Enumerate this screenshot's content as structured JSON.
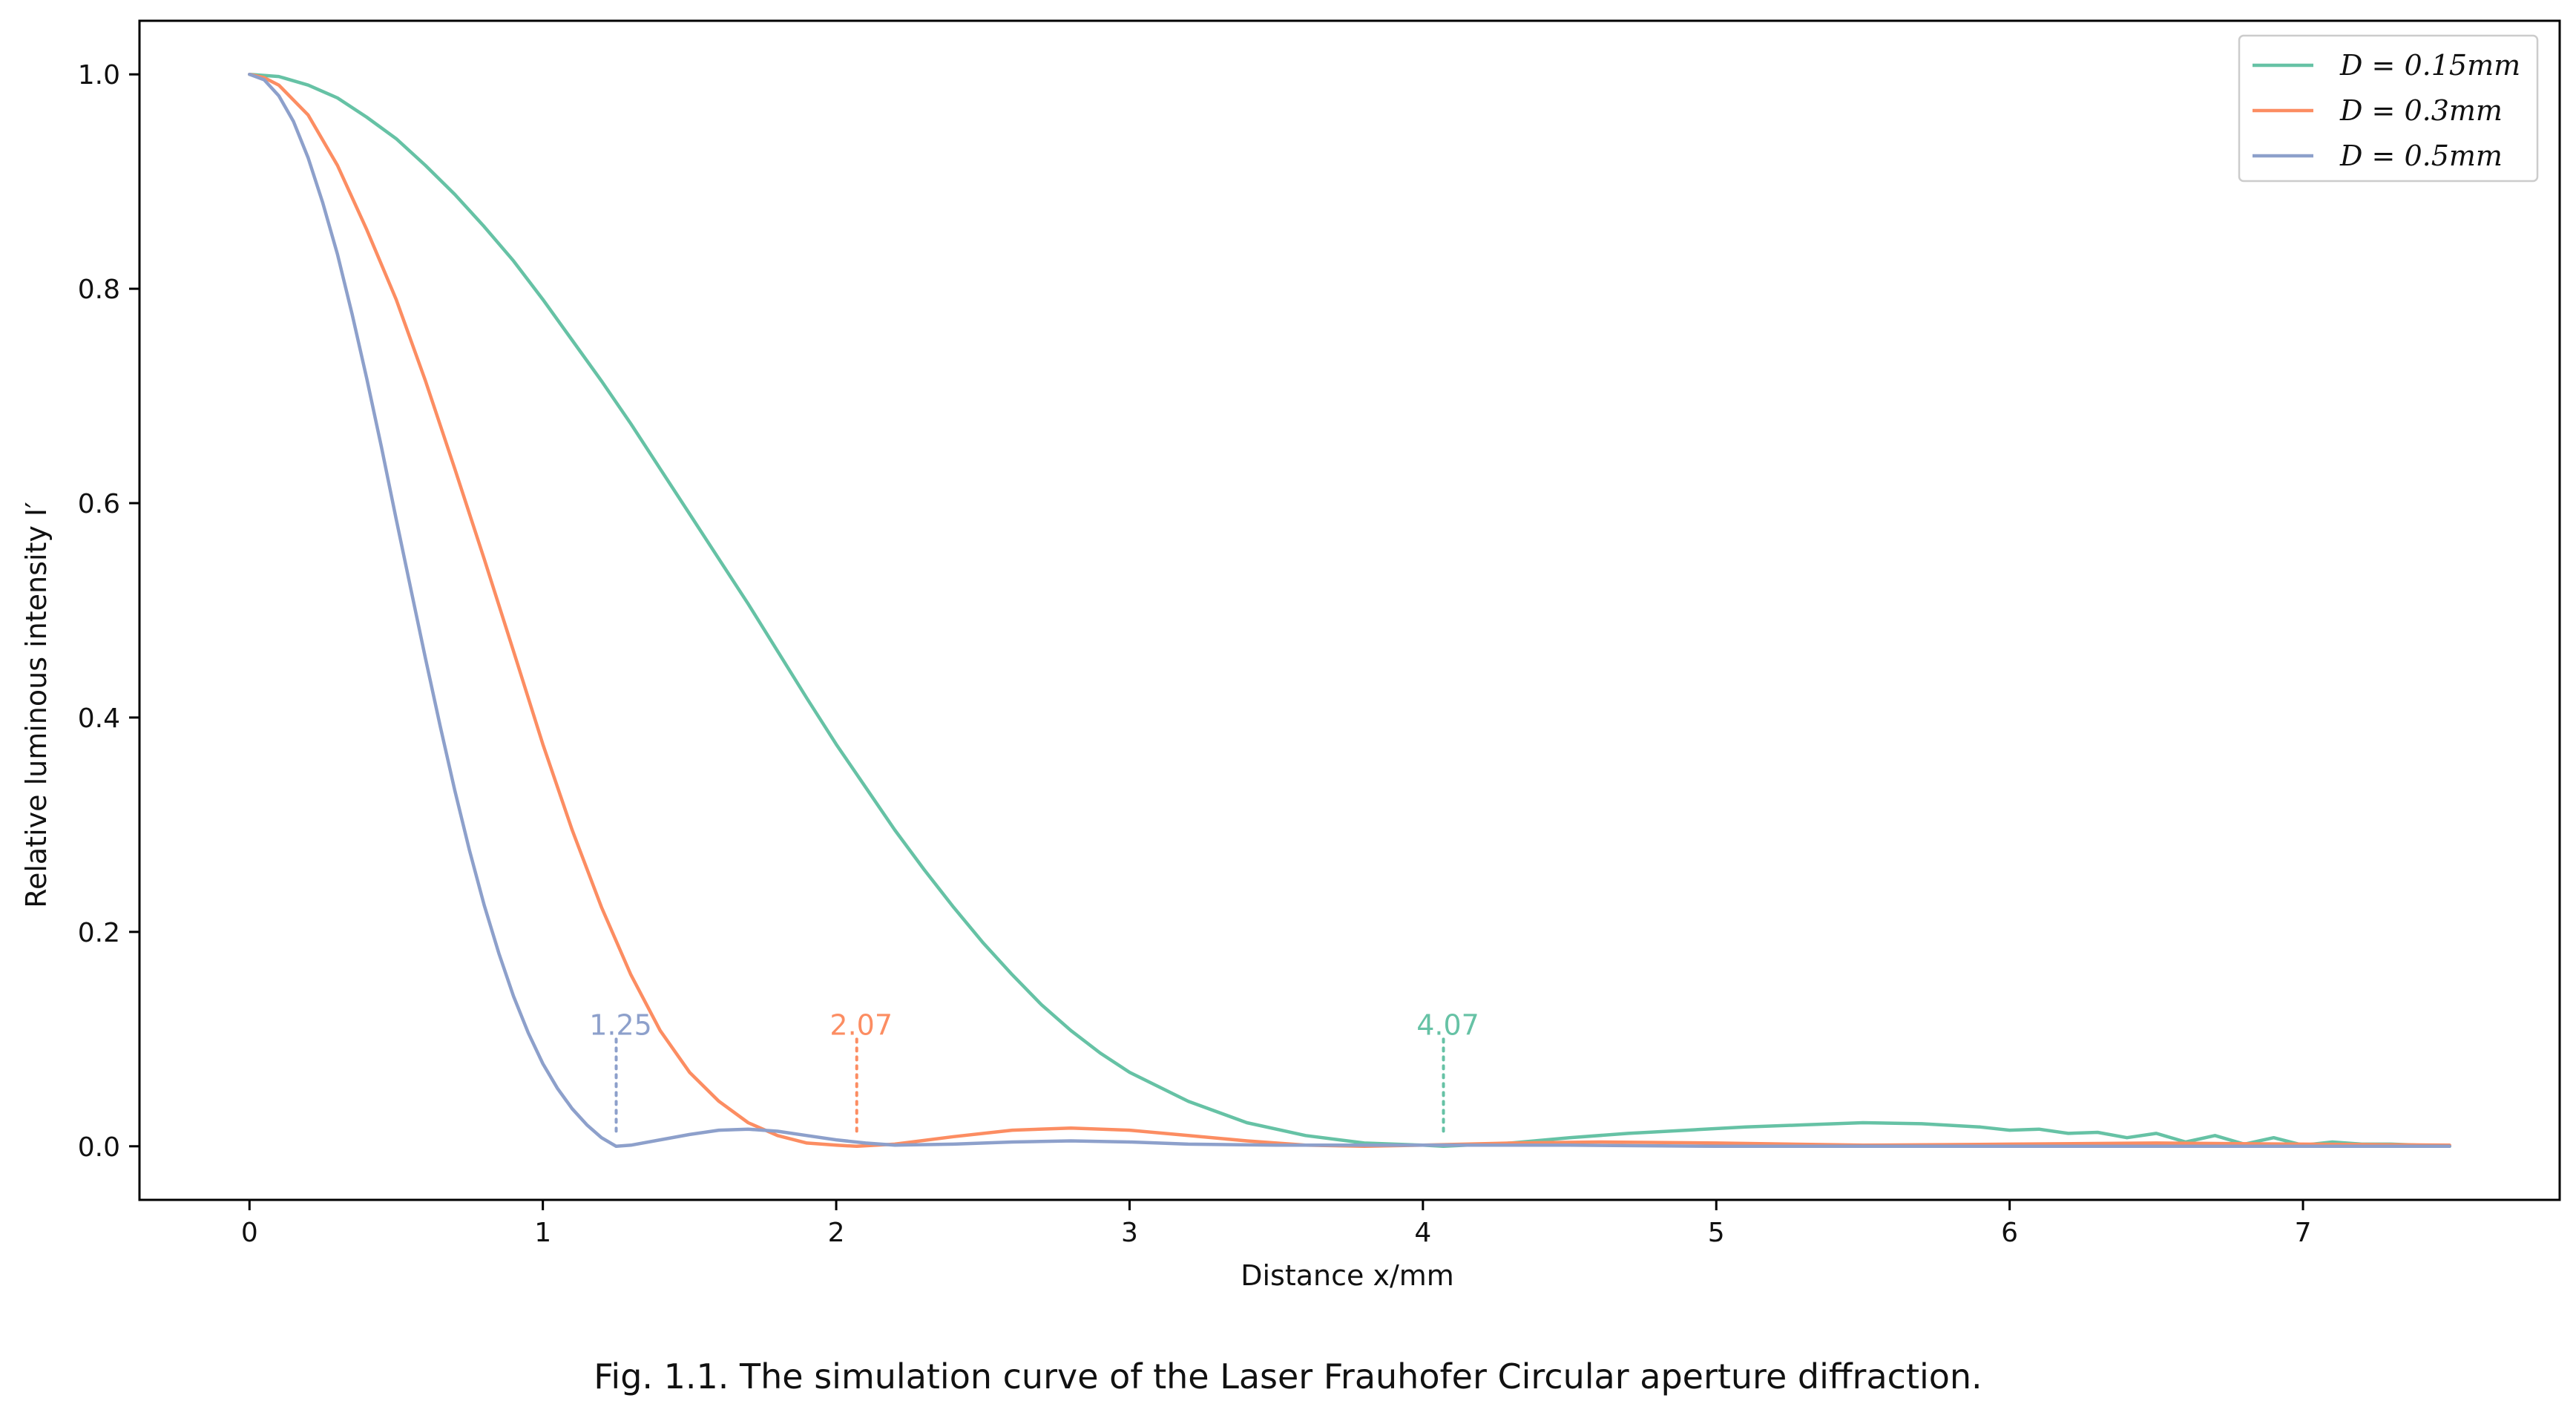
{
  "chart_data": {
    "type": "line",
    "title": "",
    "xlabel": "Distance x/mm",
    "ylabel": "Relative luminous intensity I′",
    "xlim": [
      -0.375,
      7.875
    ],
    "ylim": [
      -0.05,
      1.05
    ],
    "grid": false,
    "legend_position": "top-right",
    "xticks": [
      "0",
      "1",
      "2",
      "3",
      "4",
      "5",
      "6",
      "7"
    ],
    "yticks": [
      "0.0",
      "0.2",
      "0.4",
      "0.6",
      "0.8",
      "1.0"
    ],
    "series": [
      {
        "name": "D = 0.15mm",
        "color": "#66c2a5",
        "points": [
          [
            0.0,
            1.0
          ],
          [
            0.1,
            0.998
          ],
          [
            0.2,
            0.99
          ],
          [
            0.3,
            0.978
          ],
          [
            0.4,
            0.96
          ],
          [
            0.5,
            0.94
          ],
          [
            0.6,
            0.915
          ],
          [
            0.7,
            0.888
          ],
          [
            0.8,
            0.858
          ],
          [
            0.9,
            0.826
          ],
          [
            1.0,
            0.79
          ],
          [
            1.1,
            0.752
          ],
          [
            1.2,
            0.714
          ],
          [
            1.3,
            0.674
          ],
          [
            1.4,
            0.632
          ],
          [
            1.5,
            0.59
          ],
          [
            1.6,
            0.548
          ],
          [
            1.7,
            0.506
          ],
          [
            1.8,
            0.462
          ],
          [
            1.9,
            0.418
          ],
          [
            2.0,
            0.375
          ],
          [
            2.1,
            0.335
          ],
          [
            2.2,
            0.295
          ],
          [
            2.3,
            0.258
          ],
          [
            2.4,
            0.223
          ],
          [
            2.5,
            0.19
          ],
          [
            2.6,
            0.16
          ],
          [
            2.7,
            0.132
          ],
          [
            2.8,
            0.108
          ],
          [
            2.9,
            0.087
          ],
          [
            3.0,
            0.069
          ],
          [
            3.2,
            0.042
          ],
          [
            3.4,
            0.022
          ],
          [
            3.6,
            0.01
          ],
          [
            3.8,
            0.003
          ],
          [
            4.0,
            0.001
          ],
          [
            4.07,
            0.0
          ],
          [
            4.3,
            0.003
          ],
          [
            4.5,
            0.008
          ],
          [
            4.7,
            0.012
          ],
          [
            4.9,
            0.015
          ],
          [
            5.1,
            0.018
          ],
          [
            5.3,
            0.02
          ],
          [
            5.5,
            0.022
          ],
          [
            5.7,
            0.021
          ],
          [
            5.9,
            0.018
          ],
          [
            6.0,
            0.015
          ],
          [
            6.1,
            0.016
          ],
          [
            6.2,
            0.012
          ],
          [
            6.3,
            0.013
          ],
          [
            6.4,
            0.008
          ],
          [
            6.5,
            0.012
          ],
          [
            6.6,
            0.004
          ],
          [
            6.7,
            0.01
          ],
          [
            6.8,
            0.002
          ],
          [
            6.9,
            0.008
          ],
          [
            7.0,
            0.001
          ],
          [
            7.1,
            0.004
          ],
          [
            7.2,
            0.002
          ],
          [
            7.3,
            0.002
          ],
          [
            7.5,
            0.0
          ]
        ]
      },
      {
        "name": "D = 0.3mm",
        "color": "#fc8d62",
        "points": [
          [
            0.0,
            1.0
          ],
          [
            0.05,
            0.997
          ],
          [
            0.1,
            0.99
          ],
          [
            0.2,
            0.962
          ],
          [
            0.3,
            0.915
          ],
          [
            0.4,
            0.855
          ],
          [
            0.5,
            0.79
          ],
          [
            0.6,
            0.714
          ],
          [
            0.7,
            0.632
          ],
          [
            0.8,
            0.548
          ],
          [
            0.9,
            0.462
          ],
          [
            1.0,
            0.375
          ],
          [
            1.1,
            0.295
          ],
          [
            1.2,
            0.223
          ],
          [
            1.3,
            0.16
          ],
          [
            1.4,
            0.108
          ],
          [
            1.5,
            0.069
          ],
          [
            1.6,
            0.042
          ],
          [
            1.7,
            0.022
          ],
          [
            1.8,
            0.01
          ],
          [
            1.9,
            0.003
          ],
          [
            2.0,
            0.001
          ],
          [
            2.07,
            0.0
          ],
          [
            2.2,
            0.002
          ],
          [
            2.4,
            0.009
          ],
          [
            2.6,
            0.015
          ],
          [
            2.8,
            0.017
          ],
          [
            3.0,
            0.015
          ],
          [
            3.2,
            0.01
          ],
          [
            3.4,
            0.005
          ],
          [
            3.6,
            0.001
          ],
          [
            3.8,
            0.0
          ],
          [
            4.0,
            0.001
          ],
          [
            4.3,
            0.003
          ],
          [
            4.6,
            0.004
          ],
          [
            5.0,
            0.003
          ],
          [
            5.5,
            0.001
          ],
          [
            6.0,
            0.002
          ],
          [
            6.5,
            0.003
          ],
          [
            7.0,
            0.002
          ],
          [
            7.5,
            0.001
          ]
        ]
      },
      {
        "name": "D = 0.5mm",
        "color": "#8da0cb",
        "points": [
          [
            0.0,
            1.0
          ],
          [
            0.05,
            0.995
          ],
          [
            0.1,
            0.98
          ],
          [
            0.15,
            0.956
          ],
          [
            0.2,
            0.922
          ],
          [
            0.25,
            0.88
          ],
          [
            0.3,
            0.832
          ],
          [
            0.35,
            0.776
          ],
          [
            0.4,
            0.716
          ],
          [
            0.45,
            0.652
          ],
          [
            0.5,
            0.585
          ],
          [
            0.55,
            0.52
          ],
          [
            0.6,
            0.455
          ],
          [
            0.65,
            0.392
          ],
          [
            0.7,
            0.332
          ],
          [
            0.75,
            0.276
          ],
          [
            0.8,
            0.225
          ],
          [
            0.85,
            0.18
          ],
          [
            0.9,
            0.14
          ],
          [
            0.95,
            0.106
          ],
          [
            1.0,
            0.077
          ],
          [
            1.05,
            0.054
          ],
          [
            1.1,
            0.035
          ],
          [
            1.15,
            0.02
          ],
          [
            1.2,
            0.008
          ],
          [
            1.25,
            0.0
          ],
          [
            1.3,
            0.001
          ],
          [
            1.4,
            0.006
          ],
          [
            1.5,
            0.011
          ],
          [
            1.6,
            0.015
          ],
          [
            1.7,
            0.016
          ],
          [
            1.8,
            0.014
          ],
          [
            1.9,
            0.01
          ],
          [
            2.0,
            0.006
          ],
          [
            2.1,
            0.003
          ],
          [
            2.2,
            0.001
          ],
          [
            2.4,
            0.002
          ],
          [
            2.6,
            0.004
          ],
          [
            2.8,
            0.005
          ],
          [
            3.0,
            0.004
          ],
          [
            3.2,
            0.002
          ],
          [
            3.5,
            0.001
          ],
          [
            4.0,
            0.001
          ],
          [
            4.5,
            0.001
          ],
          [
            5.0,
            0.0
          ],
          [
            5.5,
            0.0
          ],
          [
            6.0,
            0.0
          ],
          [
            6.5,
            0.0
          ],
          [
            7.0,
            0.0
          ],
          [
            7.5,
            0.0
          ]
        ]
      }
    ],
    "annotations": [
      {
        "label": "1.25",
        "x": 1.25,
        "y": 0.1,
        "color": "#8da0cb"
      },
      {
        "label": "2.07",
        "x": 2.07,
        "y": 0.1,
        "color": "#fc8d62"
      },
      {
        "label": "4.07",
        "x": 4.07,
        "y": 0.1,
        "color": "#66c2a5"
      }
    ]
  },
  "caption": "Fig. 1.1. The simulation curve of the Laser Frauhofer Circular aperture diffraction."
}
